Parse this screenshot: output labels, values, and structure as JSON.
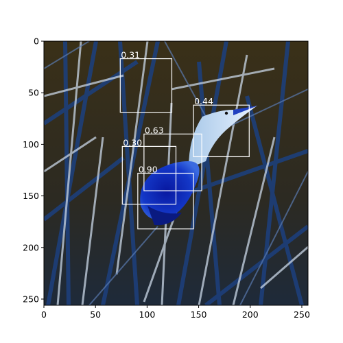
{
  "figure": {
    "image_description_size": "256x256",
    "x_ticks": [
      "0",
      "50",
      "100",
      "150",
      "200",
      "250"
    ],
    "y_ticks": [
      "0",
      "50",
      "100",
      "150",
      "200",
      "250"
    ],
    "x_range": [
      0,
      256
    ],
    "y_range": [
      256,
      0
    ]
  },
  "detections": [
    {
      "score": "0.31",
      "x0": 74,
      "y0": 17,
      "x1": 124,
      "y1": 69
    },
    {
      "score": "0.44",
      "x0": 145,
      "y0": 62,
      "x1": 199,
      "y1": 112
    },
    {
      "score": "0.63",
      "x0": 97,
      "y0": 90,
      "x1": 153,
      "y1": 145
    },
    {
      "score": "0.30",
      "x0": 76,
      "y0": 102,
      "x1": 128,
      "y1": 158
    },
    {
      "score": "0.90",
      "x0": 91,
      "y0": 128,
      "x1": 145,
      "y1": 182
    }
  ],
  "colors": {
    "box": "#ffffff",
    "background_dark": "#3a3018",
    "reed_blue": "#1d3f7a",
    "reed_light": "#c9d6e6",
    "bird_blue": "#1030b8"
  }
}
